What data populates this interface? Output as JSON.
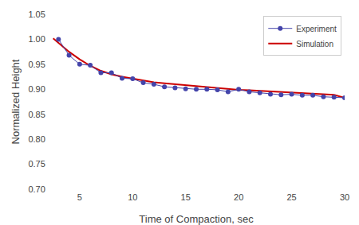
{
  "chart_data": {
    "type": "line",
    "xlabel": "Time of Compaction, sec",
    "ylabel": "Normalized Height",
    "series": [
      {
        "name": "Experiment",
        "color": "#4444aa",
        "marker": "circle",
        "x": [
          3,
          4,
          5,
          6,
          7,
          8,
          9,
          10,
          11,
          12,
          13,
          14,
          15,
          16,
          17,
          18,
          19,
          20,
          21,
          22,
          23,
          24,
          25,
          26,
          27,
          28,
          29,
          30
        ],
        "values": [
          1.0,
          0.968,
          0.95,
          0.948,
          0.933,
          0.933,
          0.922,
          0.921,
          0.913,
          0.91,
          0.905,
          0.903,
          0.901,
          0.9,
          0.9,
          0.899,
          0.895,
          0.9,
          0.895,
          0.893,
          0.89,
          0.889,
          0.89,
          0.888,
          0.888,
          0.885,
          0.884,
          0.883
        ]
      },
      {
        "name": "Simulation",
        "color": "#cc0000",
        "x": [
          2.5,
          3,
          4,
          5,
          6,
          7,
          8,
          9,
          10,
          11,
          12,
          13,
          14,
          15,
          16,
          17,
          18,
          19,
          20,
          21,
          22,
          23,
          24,
          25,
          26,
          27,
          28,
          29,
          30
        ],
        "values": [
          1.002,
          0.993,
          0.975,
          0.96,
          0.947,
          0.937,
          0.93,
          0.925,
          0.921,
          0.917,
          0.914,
          0.912,
          0.91,
          0.908,
          0.906,
          0.904,
          0.902,
          0.901,
          0.899,
          0.898,
          0.897,
          0.896,
          0.895,
          0.894,
          0.893,
          0.892,
          0.891,
          0.889,
          0.883
        ]
      }
    ],
    "xlim": [
      2,
      30
    ],
    "ylim": [
      0.7,
      1.05
    ],
    "xticks": [
      5,
      10,
      15,
      20,
      25,
      30
    ],
    "yticks": [
      {
        "value": 0.7,
        "label": "0.70"
      },
      {
        "value": 0.75,
        "label": "0.75"
      },
      {
        "value": 0.8,
        "label": "0.80"
      },
      {
        "value": 0.85,
        "label": "0.85"
      },
      {
        "value": 0.9,
        "label": "0.90"
      },
      {
        "value": 0.95,
        "label": "0.95"
      },
      {
        "value": 1.0,
        "label": "1.00"
      },
      {
        "value": 1.05,
        "label": "1.05"
      }
    ],
    "grid": false,
    "legend": "upper right"
  }
}
